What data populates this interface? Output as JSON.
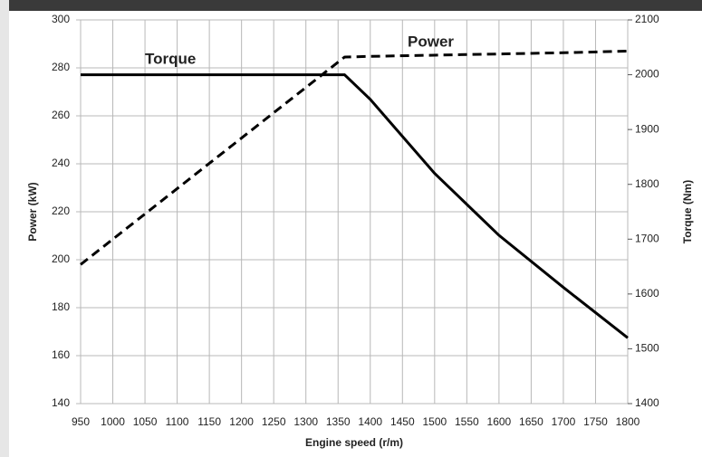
{
  "chart_data": {
    "type": "line",
    "x_label": "Engine speed (r/m)",
    "y_label": "Power (kW)",
    "y2_label": "Torque (Nm)",
    "annotations": [
      "Torque",
      "Power"
    ],
    "x": [
      950,
      1360,
      1400,
      1500,
      1600,
      1700,
      1800
    ],
    "series": [
      {
        "name": "Power",
        "color": "#000000",
        "dash": true,
        "values": [
          198,
          284.5,
          284.8,
          285.3,
          285.8,
          286.3,
          287
        ]
      },
      {
        "name": "Torque",
        "color": "#000000",
        "dash": false,
        "axis": "y2",
        "values": [
          2000,
          2000,
          1955,
          1820,
          1707,
          1612,
          1520
        ]
      }
    ],
    "xlim": [
      950,
      1800
    ],
    "xticks": [
      950,
      1000,
      1050,
      1100,
      1150,
      1200,
      1250,
      1300,
      1350,
      1400,
      1450,
      1500,
      1550,
      1600,
      1650,
      1700,
      1750,
      1800
    ],
    "ylim": [
      140,
      300
    ],
    "yticks": [
      140,
      160,
      180,
      200,
      220,
      240,
      260,
      280,
      300
    ],
    "y2lim": [
      1400,
      2100
    ],
    "y2ticks": [
      1400,
      1500,
      1600,
      1700,
      1800,
      1900,
      2000,
      2100
    ],
    "grid": true
  }
}
